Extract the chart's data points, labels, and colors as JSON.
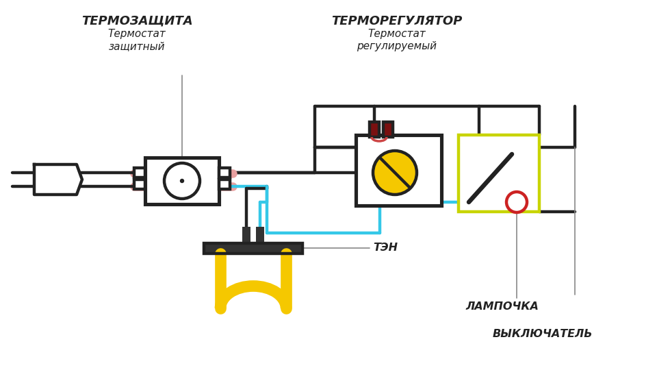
{
  "bg": "#ffffff",
  "black": "#222222",
  "blue": "#35c8e8",
  "red": "#cc2222",
  "yellow": "#f5c800",
  "olive": "#c8d400",
  "dark_red": "#7a1010",
  "pink": "#e8a0a0",
  "gray": "#888888",
  "label_thermozashita": "ТЕРМОЗАЩИТА",
  "sub_thermozashita1": "Термостат",
  "sub_thermozashita2": "защитный",
  "label_termoreg": "ТЕРМОРЕГУЛЯТОР",
  "sub_termoreg1": "Термостат",
  "sub_termoreg2": "регулируемый",
  "label_ten": "ТЭН",
  "label_lamp": "ЛАМПОЧКА",
  "label_switch": "ВЫКЛЮЧАТЕЛЬ"
}
